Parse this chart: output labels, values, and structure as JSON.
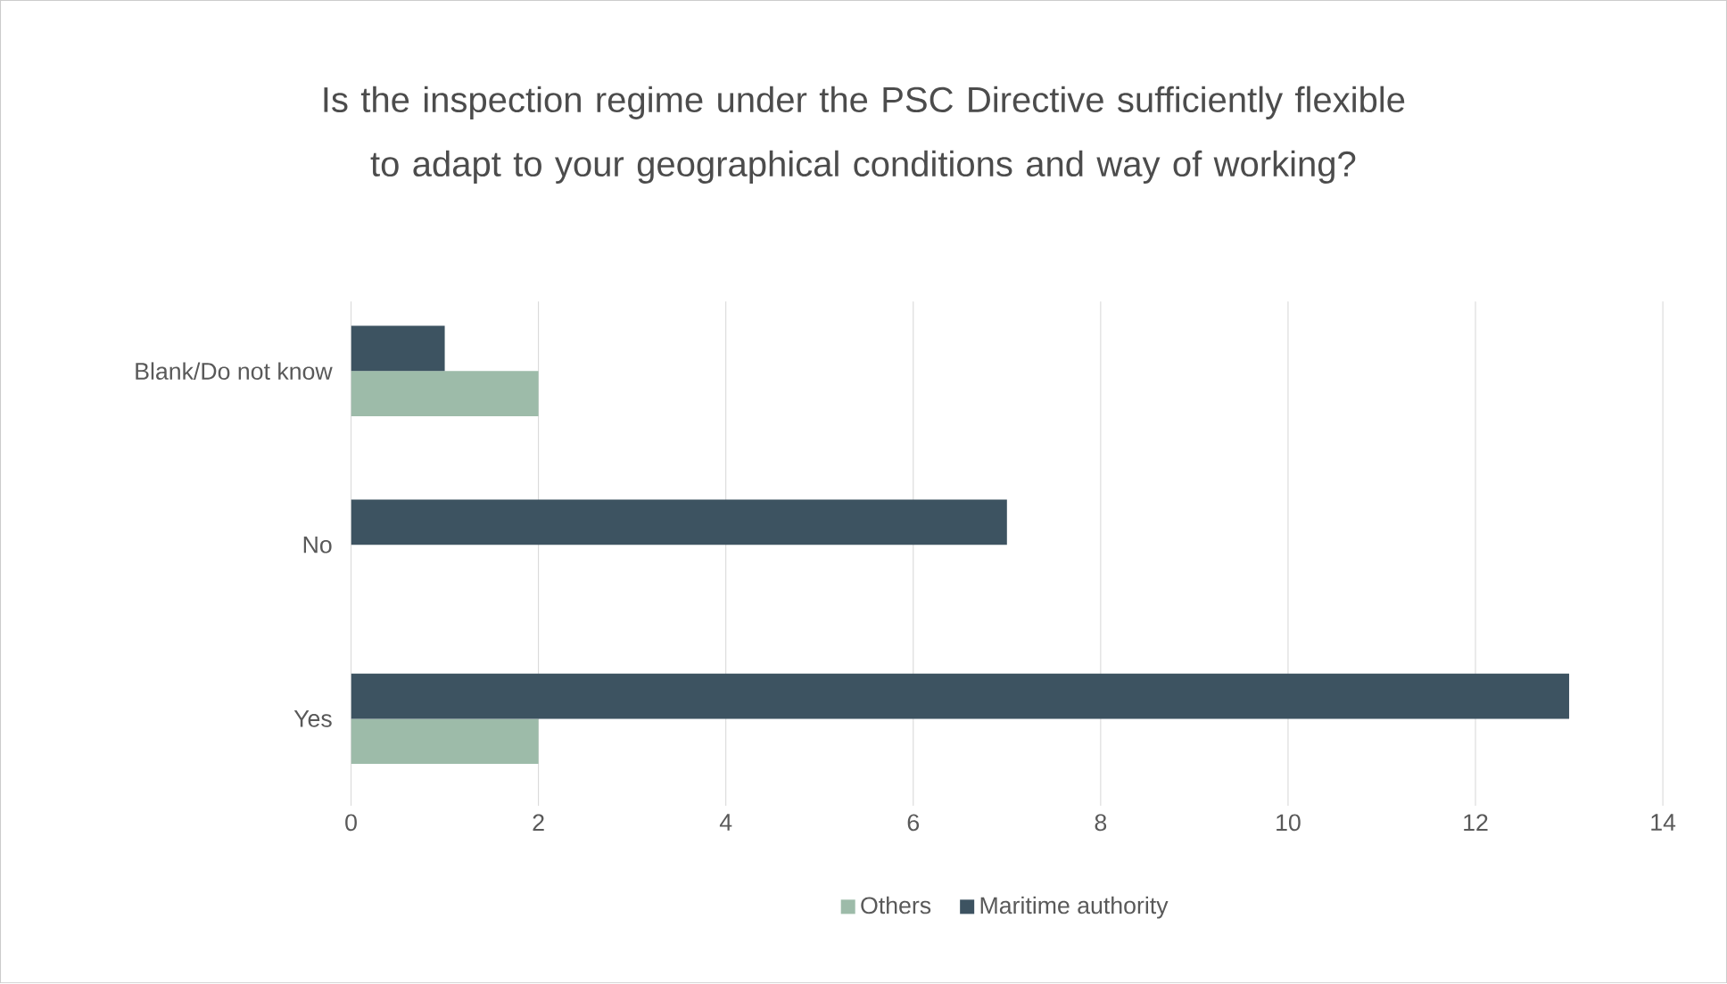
{
  "chart_data": {
    "type": "bar",
    "orientation": "horizontal",
    "title": "Is the inspection regime under the PSC Directive sufficiently flexible to adapt to your geographical conditions and way of working?",
    "categories": [
      "Blank/Do not know",
      "No",
      "Yes"
    ],
    "series": [
      {
        "name": "Others",
        "color": "#9dbba9",
        "values": [
          2,
          null,
          2
        ]
      },
      {
        "name": "Maritime authority",
        "color": "#3d5361",
        "values": [
          1,
          7,
          13
        ]
      }
    ],
    "xlim": [
      0,
      14
    ],
    "xticks": [
      0,
      2,
      4,
      6,
      8,
      10,
      12,
      14
    ],
    "grid": "x",
    "legend": "bottom"
  }
}
